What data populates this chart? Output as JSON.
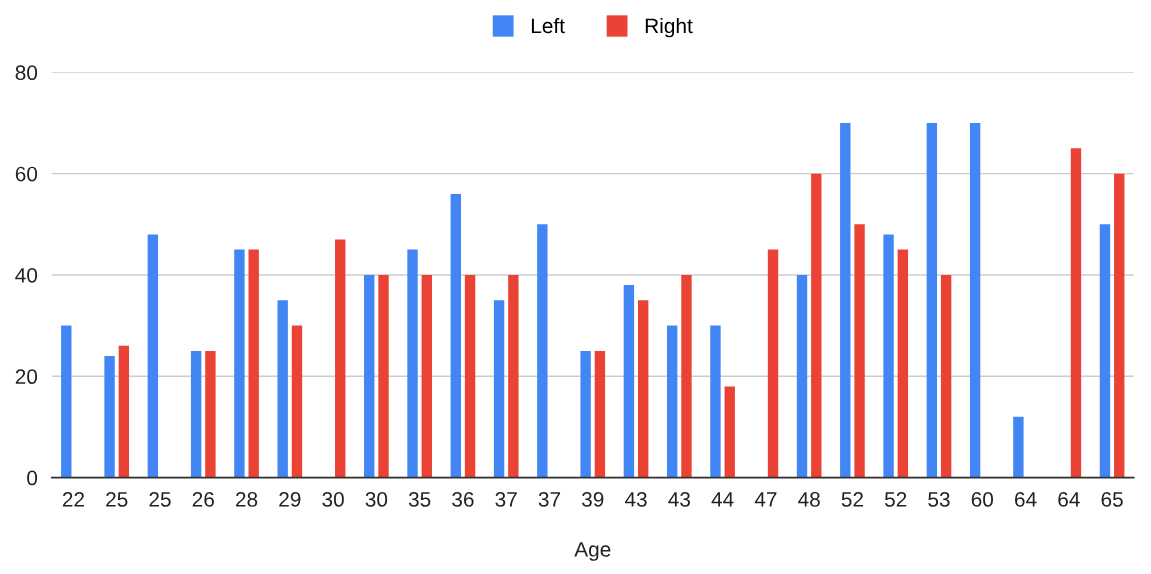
{
  "chart_data": {
    "type": "bar",
    "xlabel": "Age",
    "categories": [
      "22",
      "25",
      "25",
      "26",
      "28",
      "29",
      "30",
      "30",
      "35",
      "36",
      "37",
      "37",
      "39",
      "43",
      "43",
      "44",
      "47",
      "48",
      "52",
      "52",
      "53",
      "60",
      "64",
      "64",
      "65"
    ],
    "series": [
      {
        "name": "Left",
        "color": "#4285f4",
        "values": [
          30,
          24,
          48,
          25,
          45,
          35,
          null,
          40,
          45,
          56,
          35,
          50,
          25,
          38,
          30,
          30,
          null,
          40,
          70,
          48,
          70,
          70,
          12,
          null,
          50
        ]
      },
      {
        "name": "Right",
        "color": "#ea4335",
        "values": [
          null,
          26,
          null,
          25,
          45,
          30,
          47,
          40,
          40,
          40,
          40,
          null,
          25,
          35,
          40,
          18,
          45,
          60,
          50,
          45,
          40,
          null,
          null,
          65,
          60
        ]
      }
    ],
    "ylim": [
      0,
      80
    ],
    "yticks": [
      0,
      20,
      40,
      60,
      80
    ],
    "grid": "y",
    "legend": "top"
  }
}
